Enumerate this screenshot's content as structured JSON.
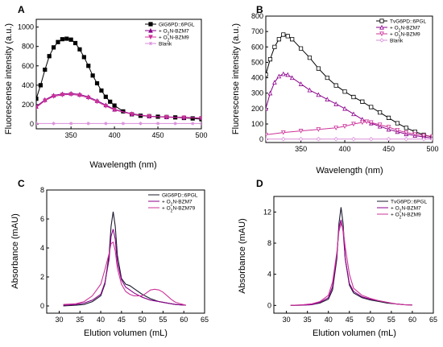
{
  "chart_data": [
    {
      "panel": "A",
      "type": "line",
      "xlabel": "Wavelength (nm)",
      "ylabel": "Fluorescense intensity (a.u.)",
      "xlim": [
        310,
        500
      ],
      "ylim": [
        -50,
        1080
      ],
      "xticks": [
        350,
        400,
        450,
        500
      ],
      "yticks": [
        0,
        200,
        400,
        600,
        800,
        1000
      ],
      "legend_position": "top-right",
      "series": [
        {
          "name": "GlG6PD::6PGL",
          "color": "#000000",
          "marker": "square-filled",
          "x": [
            310,
            315,
            320,
            325,
            330,
            335,
            340,
            345,
            350,
            355,
            360,
            365,
            370,
            375,
            380,
            385,
            390,
            395,
            400,
            410,
            420,
            430,
            440,
            450,
            460,
            470,
            480,
            490,
            500
          ],
          "y": [
            260,
            400,
            560,
            700,
            790,
            845,
            875,
            880,
            870,
            835,
            770,
            690,
            600,
            500,
            420,
            345,
            280,
            230,
            190,
            130,
            100,
            85,
            80,
            75,
            72,
            68,
            62,
            57,
            50
          ]
        },
        {
          "name": "+ O2N-BZM7",
          "color": "#8b008b",
          "marker": "triangle-up",
          "x": [
            310,
            320,
            330,
            340,
            350,
            360,
            370,
            380,
            390,
            400,
            420,
            440,
            460,
            480,
            500
          ],
          "y": [
            180,
            250,
            295,
            310,
            315,
            305,
            280,
            240,
            195,
            150,
            105,
            80,
            72,
            68,
            62
          ]
        },
        {
          "name": "+ O2N-BZM9",
          "color": "#cc3399",
          "marker": "triangle-down",
          "x": [
            310,
            320,
            330,
            340,
            350,
            360,
            370,
            380,
            390,
            400,
            420,
            440,
            460,
            480,
            500
          ],
          "y": [
            170,
            240,
            285,
            300,
            305,
            295,
            270,
            230,
            185,
            145,
            100,
            78,
            70,
            65,
            60
          ]
        },
        {
          "name": "Blank",
          "color": "#d98ed9",
          "marker": "star",
          "x": [
            310,
            330,
            350,
            370,
            390,
            410,
            430,
            450,
            470,
            490,
            500
          ],
          "y": [
            5,
            5,
            5,
            5,
            5,
            5,
            5,
            5,
            5,
            5,
            5
          ]
        }
      ]
    },
    {
      "panel": "B",
      "type": "line",
      "xlabel": "Wavelength (nm)",
      "ylabel": "Fluorescense intensity (a.u.)",
      "xlim": [
        310,
        500
      ],
      "ylim": [
        -20,
        800
      ],
      "xticks": [
        350,
        400,
        450,
        500
      ],
      "yticks": [
        0,
        100,
        200,
        300,
        400,
        500,
        600,
        700,
        800
      ],
      "legend_position": "top-right",
      "series": [
        {
          "name": "TvG6PD::6PGL",
          "color": "#000000",
          "marker": "square-open",
          "x": [
            310,
            315,
            320,
            325,
            330,
            335,
            340,
            350,
            360,
            370,
            380,
            390,
            400,
            410,
            420,
            430,
            440,
            450,
            460,
            470,
            480,
            490,
            500
          ],
          "y": [
            420,
            520,
            600,
            650,
            680,
            670,
            650,
            590,
            530,
            460,
            400,
            350,
            310,
            275,
            245,
            210,
            175,
            140,
            105,
            75,
            50,
            30,
            15
          ]
        },
        {
          "name": "+ O2N-BZM7",
          "color": "#8b008b",
          "marker": "triangle-up-open",
          "x": [
            310,
            315,
            320,
            325,
            330,
            335,
            340,
            350,
            360,
            370,
            380,
            390,
            400,
            410,
            420,
            430,
            440,
            450,
            460,
            470,
            480,
            490,
            500
          ],
          "y": [
            200,
            300,
            370,
            410,
            425,
            420,
            400,
            360,
            320,
            290,
            260,
            230,
            200,
            165,
            130,
            105,
            85,
            65,
            50,
            35,
            25,
            15,
            10
          ]
        },
        {
          "name": "+ O2N-BZM9",
          "color": "#cc3399",
          "marker": "triangle-down-open",
          "x": [
            310,
            330,
            350,
            370,
            390,
            400,
            410,
            420,
            425,
            430,
            440,
            450,
            460,
            470,
            480,
            490,
            500
          ],
          "y": [
            30,
            45,
            55,
            65,
            75,
            85,
            100,
            110,
            115,
            110,
            95,
            80,
            60,
            45,
            35,
            25,
            20
          ]
        },
        {
          "name": "Blank",
          "color": "#d98ed9",
          "marker": "diamond-open",
          "x": [
            310,
            330,
            350,
            370,
            390,
            410,
            430,
            450,
            470,
            490,
            500
          ],
          "y": [
            2,
            2,
            2,
            2,
            2,
            2,
            2,
            2,
            2,
            2,
            2
          ]
        }
      ]
    },
    {
      "panel": "C",
      "type": "line",
      "xlabel": "Elution volumen (mL)",
      "ylabel": "Absorbance (mAU)",
      "xlim": [
        27,
        65
      ],
      "ylim": [
        -0.5,
        8
      ],
      "xticks": [
        30,
        35,
        40,
        45,
        50,
        55,
        60,
        65
      ],
      "yticks": [
        0,
        2,
        4,
        6,
        8
      ],
      "legend_position": "top-right",
      "series": [
        {
          "name": "GlG6PD::6PGL",
          "color": "#1a1a2e",
          "x": [
            31,
            34,
            36,
            38,
            40,
            41,
            42,
            42.5,
            43,
            43.5,
            44,
            45,
            46,
            47,
            48,
            50,
            52,
            54,
            56,
            58,
            60.5
          ],
          "y": [
            0,
            0.05,
            0.1,
            0.3,
            0.7,
            1.5,
            3.5,
            5.5,
            6.5,
            5.5,
            3.5,
            1.9,
            1.5,
            1.4,
            1.2,
            0.8,
            0.5,
            0.3,
            0.2,
            0.1,
            0.05
          ]
        },
        {
          "name": "+ O2N-BZM7",
          "color": "#8b008b",
          "x": [
            31,
            34,
            36,
            38,
            40,
            41,
            42,
            42.5,
            43,
            43.5,
            44,
            45,
            46,
            47,
            48,
            50,
            52,
            54,
            56,
            58,
            60.5
          ],
          "y": [
            0.05,
            0.1,
            0.2,
            0.4,
            0.8,
            1.6,
            3.2,
            4.8,
            5.3,
            4.6,
            3.0,
            1.8,
            1.3,
            1.1,
            0.9,
            0.6,
            0.4,
            0.3,
            0.2,
            0.1,
            0.05
          ]
        },
        {
          "name": "+ O2N-BZM79",
          "color": "#cc3399",
          "x": [
            31,
            34,
            36,
            38,
            40,
            41,
            42,
            42.5,
            43,
            43.5,
            44,
            45,
            46,
            47,
            48,
            50,
            51,
            52,
            53,
            54,
            55,
            56,
            57,
            58,
            60.5
          ],
          "y": [
            0.1,
            0.15,
            0.3,
            0.7,
            1.5,
            2.5,
            3.6,
            4.3,
            4.4,
            3.8,
            2.6,
            1.5,
            1.0,
            0.8,
            0.7,
            0.7,
            0.9,
            1.1,
            1.15,
            1.1,
            0.95,
            0.7,
            0.45,
            0.25,
            0.05
          ]
        }
      ]
    },
    {
      "panel": "D",
      "type": "line",
      "xlabel": "Elution volumen (mL)",
      "ylabel": "Absorbance (mAU)",
      "xlim": [
        27,
        65
      ],
      "ylim": [
        -1,
        14
      ],
      "xticks": [
        30,
        35,
        40,
        45,
        50,
        55,
        60,
        65
      ],
      "yticks": [
        0,
        4,
        8,
        12
      ],
      "legend_position": "top-right",
      "series": [
        {
          "name": "TvG6PD::6PGL",
          "color": "#1a1a2e",
          "x": [
            31,
            34,
            36,
            38,
            40,
            41,
            42,
            42.5,
            43,
            43.5,
            44,
            45,
            46,
            48,
            50,
            52,
            54,
            56,
            58,
            60
          ],
          "y": [
            0,
            0.05,
            0.1,
            0.3,
            0.8,
            2.0,
            6.0,
            10.5,
            12.6,
            10.5,
            6.0,
            2.6,
            1.6,
            1.0,
            0.7,
            0.5,
            0.3,
            0.2,
            0.1,
            0.05
          ]
        },
        {
          "name": "+ O2N-BZM7",
          "color": "#8b008b",
          "x": [
            31,
            34,
            36,
            38,
            40,
            41,
            42,
            42.5,
            43,
            43.5,
            44,
            45,
            46,
            48,
            50,
            52,
            54,
            56,
            58,
            60
          ],
          "y": [
            0,
            0.05,
            0.1,
            0.4,
            1.0,
            2.4,
            6.5,
            10.0,
            11.0,
            9.5,
            6.0,
            2.8,
            1.8,
            1.1,
            0.8,
            0.6,
            0.4,
            0.2,
            0.1,
            0.05
          ]
        },
        {
          "name": "+ O2N-BZM9",
          "color": "#cc3399",
          "x": [
            31,
            34,
            36,
            38,
            40,
            41,
            42,
            42.5,
            43,
            43.5,
            44,
            45,
            46,
            48,
            50,
            52,
            54,
            56,
            58,
            60
          ],
          "y": [
            0,
            0.1,
            0.2,
            0.5,
            1.3,
            3.0,
            6.8,
            9.5,
            10.5,
            9.8,
            7.5,
            4.0,
            2.2,
            1.3,
            0.9,
            0.6,
            0.4,
            0.2,
            0.1,
            0.05
          ]
        }
      ]
    }
  ]
}
